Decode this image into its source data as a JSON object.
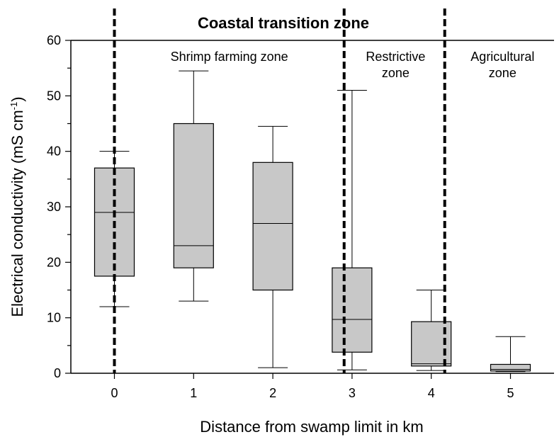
{
  "chart_data": {
    "type": "box",
    "title": "Coastal transition zone",
    "xlabel": "Distance from swamp limit in km",
    "ylabel_main": "Electrical conductivity (mS cm",
    "ylabel_sup": "-1",
    "ylabel_close": ")",
    "ylim": [
      0,
      60
    ],
    "yticks": [
      0,
      10,
      20,
      30,
      40,
      50,
      60
    ],
    "xlim": [
      -0.55,
      5.55
    ],
    "categories": [
      "0",
      "1",
      "2",
      "3",
      "4",
      "5"
    ],
    "boxes": [
      {
        "x": 0,
        "min": 12,
        "q1": 17.5,
        "median": 29,
        "q3": 37,
        "max": 40
      },
      {
        "x": 1,
        "min": 13,
        "q1": 19,
        "median": 23,
        "q3": 45,
        "max": 54.5
      },
      {
        "x": 2,
        "min": 1,
        "q1": 15,
        "median": 27,
        "q3": 38,
        "max": 44.5
      },
      {
        "x": 3,
        "min": 0.6,
        "q1": 3.8,
        "median": 9.7,
        "q3": 19,
        "max": 51
      },
      {
        "x": 4,
        "min": 0.5,
        "q1": 1.3,
        "median": 1.7,
        "q3": 9.3,
        "max": 15
      },
      {
        "x": 5,
        "min": 0.3,
        "q1": 0.4,
        "median": 0.7,
        "q3": 1.6,
        "max": 6.6
      }
    ],
    "zone_boundaries": [
      0,
      2.9,
      4.17
    ],
    "zone_labels": [
      {
        "lines": [
          "Shrimp farming zone"
        ],
        "x": 1.45
      },
      {
        "lines": [
          "Restrictive",
          "zone"
        ],
        "x": 3.55
      },
      {
        "lines": [
          "Agricultural",
          "zone"
        ],
        "x": 4.9
      }
    ],
    "box_fill": "#c8c8c8",
    "grid": false
  }
}
